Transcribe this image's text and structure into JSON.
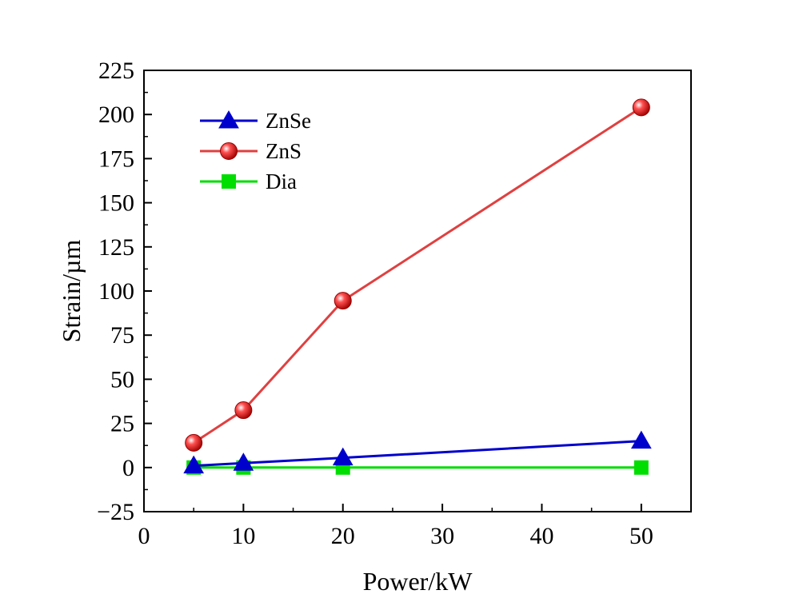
{
  "chart_data": {
    "type": "line",
    "xlabel": "Power/kW",
    "ylabel": "Strain/µm",
    "xlim": [
      0,
      55
    ],
    "ylim": [
      -25,
      225
    ],
    "xticks": [
      0,
      10,
      20,
      30,
      40,
      50
    ],
    "yticks": [
      -25,
      0,
      25,
      50,
      75,
      100,
      125,
      150,
      175,
      200,
      225
    ],
    "ytick_labels": [
      "−25",
      "0",
      "25",
      "50",
      "75",
      "100",
      "125",
      "150",
      "175",
      "200",
      "225"
    ],
    "grid": false,
    "legend_position": "top-left",
    "x": [
      5,
      10,
      20,
      50
    ],
    "series": [
      {
        "name": "ZnSe",
        "values": [
          1,
          2.5,
          5.5,
          15
        ],
        "color": "#0000cc",
        "marker": "triangle"
      },
      {
        "name": "ZnS",
        "values": [
          14,
          32.5,
          94.5,
          204
        ],
        "color": "#e04040",
        "marker": "sphere"
      },
      {
        "name": "Dia",
        "values": [
          0,
          0,
          0,
          0
        ],
        "color": "#00dd00",
        "marker": "square"
      }
    ]
  }
}
